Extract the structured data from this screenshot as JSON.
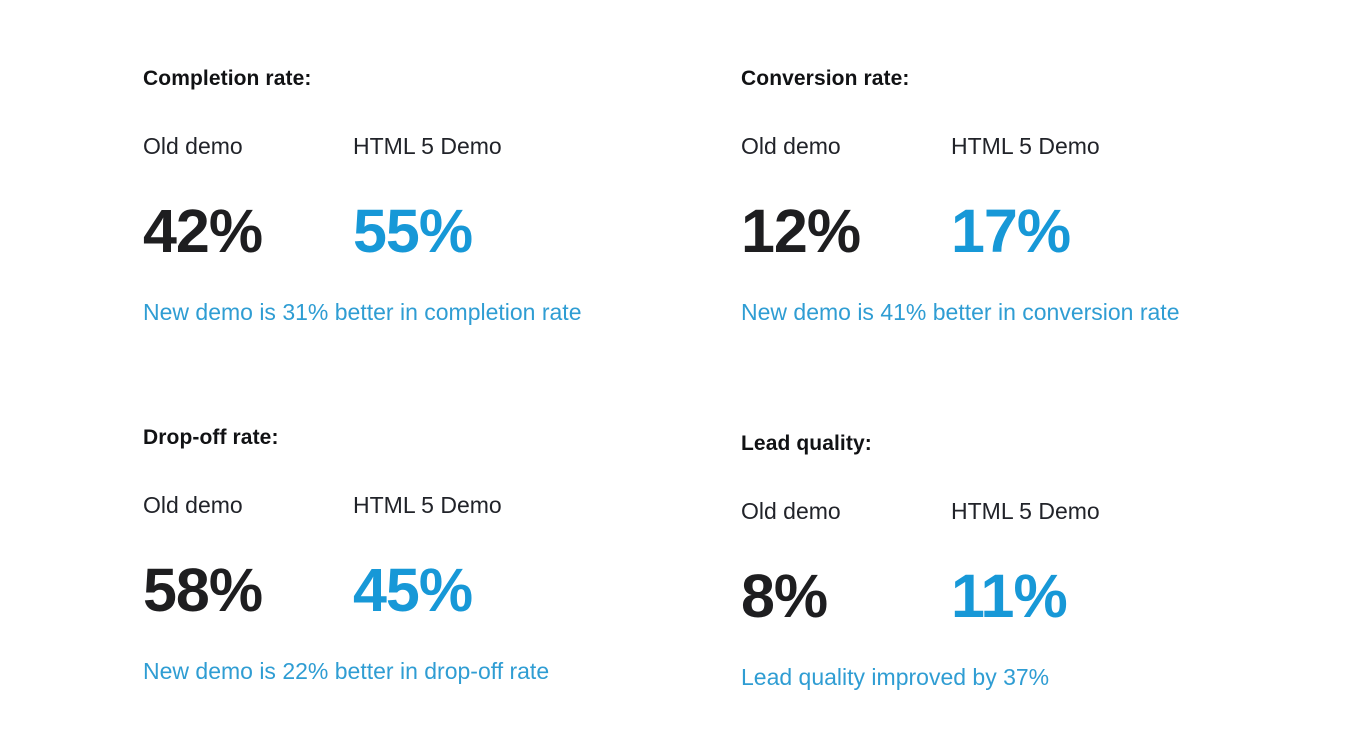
{
  "columns": {
    "old_label": "Old demo",
    "new_label": "HTML 5 Demo"
  },
  "metrics": [
    {
      "title": "Completion rate:",
      "old_value": "42%",
      "new_value": "55%",
      "caption": "New demo is 31% better in completion rate"
    },
    {
      "title": "Conversion rate:",
      "old_value": "12%",
      "new_value": "17%",
      "caption": "New demo is 41% better in conversion rate"
    },
    {
      "title": "Drop-off rate:",
      "old_value": "58%",
      "new_value": "45%",
      "caption": "New demo is 22% better in drop-off rate"
    },
    {
      "title": "Lead quality:",
      "old_value": "8%",
      "new_value": "11%",
      "caption": "Lead quality improved by 37%"
    }
  ],
  "colors": {
    "background": "#ffffff",
    "title_color": "#111214",
    "label_color": "#212329",
    "old_value_color": "#1e1e20",
    "new_value_color": "#1798d7",
    "caption_color": "#2f9dd3"
  },
  "chart_data": {
    "type": "table",
    "title": "Old demo vs HTML 5 Demo metric comparison",
    "categories": [
      "Completion rate",
      "Conversion rate",
      "Drop-off rate",
      "Lead quality"
    ],
    "unit": "%",
    "series": [
      {
        "name": "Old demo",
        "values": [
          42,
          12,
          58,
          8
        ]
      },
      {
        "name": "HTML 5 Demo",
        "values": [
          55,
          17,
          45,
          11
        ]
      }
    ],
    "annotations": [
      "New demo is 31% better in completion rate",
      "New demo is 41% better in conversion rate",
      "New demo is 22% better in drop-off rate",
      "Lead quality improved by 37%"
    ],
    "layout": "2x2 grid of KPI comparison cards, no axes, no gridlines"
  }
}
